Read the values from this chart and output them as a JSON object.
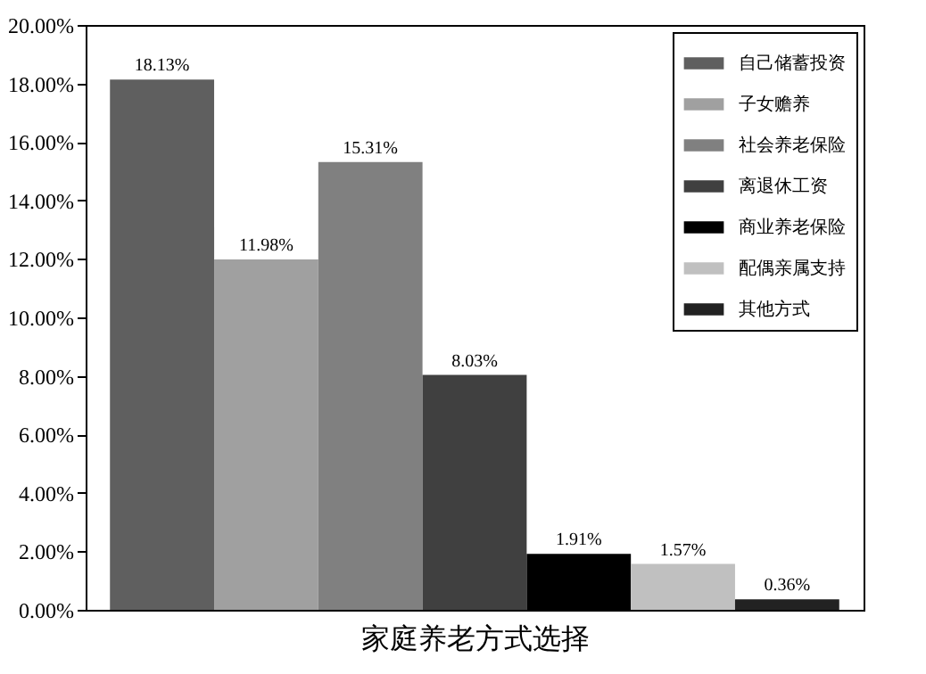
{
  "chart_data": {
    "type": "bar",
    "xlabel": "家庭养老方式选择",
    "categories": [
      null
    ],
    "series": [
      {
        "name": "自己储蓄投资",
        "color": "#5f5f5f",
        "values": [
          18.13
        ],
        "value_labels": [
          "18.13%"
        ]
      },
      {
        "name": "子女赡养",
        "color": "#a0a0a0",
        "values": [
          11.98
        ],
        "value_labels": [
          "11.98%"
        ]
      },
      {
        "name": "社会养老保险",
        "color": "#808080",
        "values": [
          15.31
        ],
        "value_labels": [
          "15.31%"
        ]
      },
      {
        "name": "离退休工资",
        "color": "#404040",
        "values": [
          8.03
        ],
        "value_labels": [
          "8.03%"
        ]
      },
      {
        "name": "商业养老保险",
        "color": "#000000",
        "values": [
          1.91
        ],
        "value_labels": [
          "1.91%"
        ]
      },
      {
        "name": "配偶亲属支持",
        "color": "#c0c0c0",
        "values": [
          1.57
        ],
        "value_labels": [
          "1.57%"
        ]
      },
      {
        "name": "其他方式",
        "color": "#222222",
        "values": [
          0.36
        ],
        "value_labels": [
          "0.36%"
        ]
      }
    ],
    "ylim": [
      0,
      20
    ],
    "yticks": [
      {
        "value": 0,
        "label": "0.00%"
      },
      {
        "value": 2,
        "label": "2.00%"
      },
      {
        "value": 4,
        "label": "4.00%"
      },
      {
        "value": 6,
        "label": "6.00%"
      },
      {
        "value": 8,
        "label": "8.00%"
      },
      {
        "value": 10,
        "label": "10.00%"
      },
      {
        "value": 12,
        "label": "12.00%"
      },
      {
        "value": 14,
        "label": "14.00%"
      },
      {
        "value": 16,
        "label": "16.00%"
      },
      {
        "value": 18,
        "label": "18.00%"
      },
      {
        "value": 20,
        "label": "20.00%"
      }
    ],
    "legend": "top right",
    "grid": false
  }
}
